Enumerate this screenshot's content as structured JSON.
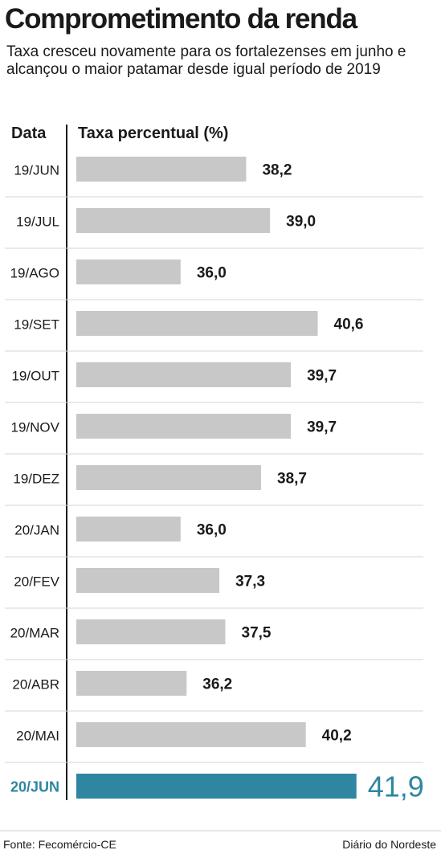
{
  "title": "Comprometimento da renda",
  "subtitle": "Taxa cresceu novamente para os fortalezenses em junho e alcançou o maior patamar desde igual período de 2019",
  "footer": {
    "source": "Fonte: Fecomércio-CE",
    "publisher": "Diário do Nordeste"
  },
  "colors": {
    "bar": "#c8c8c8",
    "highlight": "#2e86a0",
    "text": "#1a1a1a",
    "rule": "#1a1a1a"
  },
  "chart_data": {
    "type": "bar",
    "orientation": "horizontal",
    "title": "Comprometimento da renda",
    "xlabel": "Taxa percentual (%)",
    "ylabel": "Data",
    "categories": [
      "19/JUN",
      "19/JUL",
      "19/AGO",
      "19/SET",
      "19/OUT",
      "19/NOV",
      "19/DEZ",
      "20/JAN",
      "20/FEV",
      "20/MAR",
      "20/ABR",
      "20/MAI",
      "20/JUN"
    ],
    "values": [
      38.2,
      39.0,
      36.0,
      40.6,
      39.7,
      39.7,
      38.7,
      36.0,
      37.3,
      37.5,
      36.2,
      40.2,
      41.9
    ],
    "value_labels": [
      "38,2",
      "39,0",
      "36,0",
      "40,6",
      "39,7",
      "39,7",
      "38,7",
      "36,0",
      "37,3",
      "37,5",
      "36,2",
      "40,2",
      "41,9"
    ],
    "highlight_index": 12,
    "axis_baseline": 32.5,
    "grid": false,
    "legend": "none"
  }
}
